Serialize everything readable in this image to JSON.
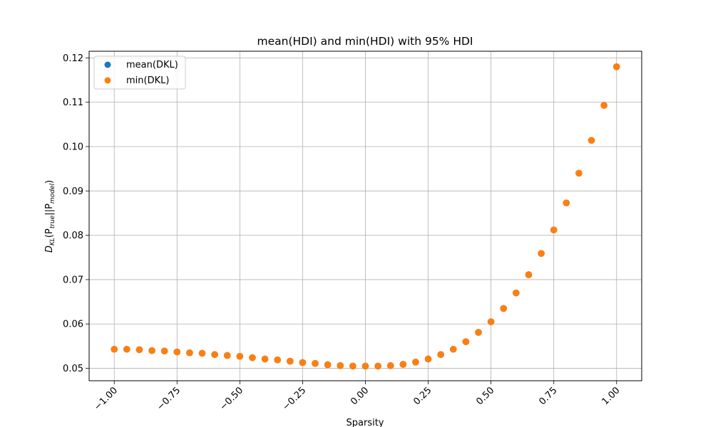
{
  "chart_data": {
    "type": "scatter",
    "title": "mean(HDI) and min(HDI) with 95% HDI",
    "xlabel": "Sparsity",
    "ylabel": "D_KL(P_true||P_model)",
    "ylabel_parts": {
      "main": "D",
      "main_sub": "KL",
      "open": "(P",
      "p1_sub": "true",
      "mid": "||P",
      "p2_sub": "model",
      "close": ")"
    },
    "xlim": [
      -1.1,
      1.1
    ],
    "ylim": [
      0.0472,
      0.1215
    ],
    "grid": true,
    "legend_position": "top-left",
    "x_ticks": [
      -1.0,
      -0.75,
      -0.5,
      -0.25,
      0.0,
      0.25,
      0.5,
      0.75,
      1.0
    ],
    "x_tick_labels": [
      "−1.00",
      "−0.75",
      "−0.50",
      "−0.25",
      "0.00",
      "0.25",
      "0.50",
      "0.75",
      "1.00"
    ],
    "y_ticks": [
      0.05,
      0.06,
      0.07,
      0.08,
      0.09,
      0.1,
      0.11,
      0.12
    ],
    "y_tick_labels": [
      "0.05",
      "0.06",
      "0.07",
      "0.08",
      "0.09",
      "0.10",
      "0.11",
      "0.12"
    ],
    "x": [
      -1.0,
      -0.95,
      -0.9,
      -0.85,
      -0.8,
      -0.75,
      -0.7,
      -0.65,
      -0.6,
      -0.55,
      -0.5,
      -0.45,
      -0.4,
      -0.35,
      -0.3,
      -0.25,
      -0.2,
      -0.15,
      -0.1,
      -0.05,
      0.0,
      0.05,
      0.1,
      0.15,
      0.2,
      0.25,
      0.3,
      0.35,
      0.4,
      0.45,
      0.5,
      0.55,
      0.6,
      0.65,
      0.7,
      0.75,
      0.8,
      0.85,
      0.9,
      0.95,
      1.0
    ],
    "series": [
      {
        "name": "mean(DKL)",
        "color": "#1f77b4",
        "values": [
          0.0543,
          0.0543,
          0.0542,
          0.054,
          0.0539,
          0.0537,
          0.0535,
          0.0534,
          0.0531,
          0.0529,
          0.0527,
          0.0524,
          0.0521,
          0.0519,
          0.0516,
          0.0513,
          0.0511,
          0.0508,
          0.0506,
          0.0505,
          0.0505,
          0.0505,
          0.0506,
          0.0509,
          0.0514,
          0.0521,
          0.0531,
          0.0543,
          0.056,
          0.0581,
          0.0605,
          0.0635,
          0.067,
          0.0711,
          0.0759,
          0.0812,
          0.0873,
          0.094,
          0.1014,
          0.1093,
          0.118
        ]
      },
      {
        "name": "min(DKL)",
        "color": "#ff7f0e",
        "values": [
          0.0543,
          0.0543,
          0.0542,
          0.054,
          0.0539,
          0.0537,
          0.0535,
          0.0534,
          0.0531,
          0.0529,
          0.0527,
          0.0524,
          0.0521,
          0.0519,
          0.0516,
          0.0513,
          0.0511,
          0.0508,
          0.0506,
          0.0505,
          0.0505,
          0.0505,
          0.0506,
          0.0509,
          0.0514,
          0.0521,
          0.0531,
          0.0543,
          0.056,
          0.0581,
          0.0605,
          0.0635,
          0.067,
          0.0711,
          0.0759,
          0.0812,
          0.0873,
          0.094,
          0.1014,
          0.1093,
          0.118
        ]
      }
    ]
  }
}
